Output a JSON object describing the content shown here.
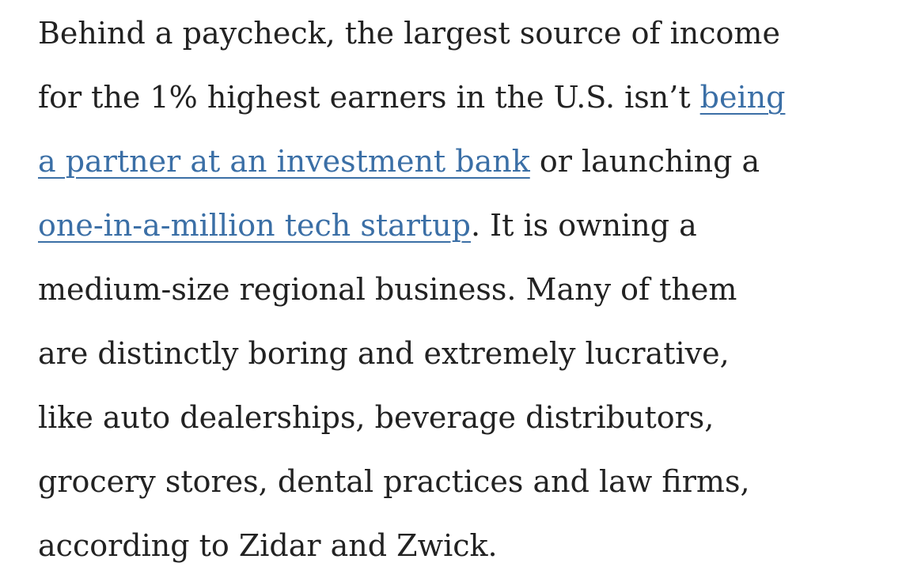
{
  "paragraph": {
    "lines": [
      [
        {
          "text": "Behind a paycheck, the largest source of income"
        }
      ],
      [
        {
          "text": "for the 1% highest earners in the U.S. isn’t "
        },
        {
          "text": "being",
          "link": true
        }
      ],
      [
        {
          "text": "a partner at an investment bank",
          "link": true
        },
        {
          "text": " or launching a"
        }
      ],
      [
        {
          "text": "one-in-a-million tech startup",
          "link": true
        },
        {
          "text": ". It is owning a"
        }
      ],
      [
        {
          "text": "medium-size regional business. Many of them"
        }
      ],
      [
        {
          "text": "are distinctly boring and extremely lucrative,"
        }
      ],
      [
        {
          "text": "like auto dealerships, beverage distributors,"
        }
      ],
      [
        {
          "text": "grocery stores, dental practices and law firms,"
        }
      ],
      [
        {
          "text": "according to Zidar and Zwick."
        }
      ]
    ]
  }
}
